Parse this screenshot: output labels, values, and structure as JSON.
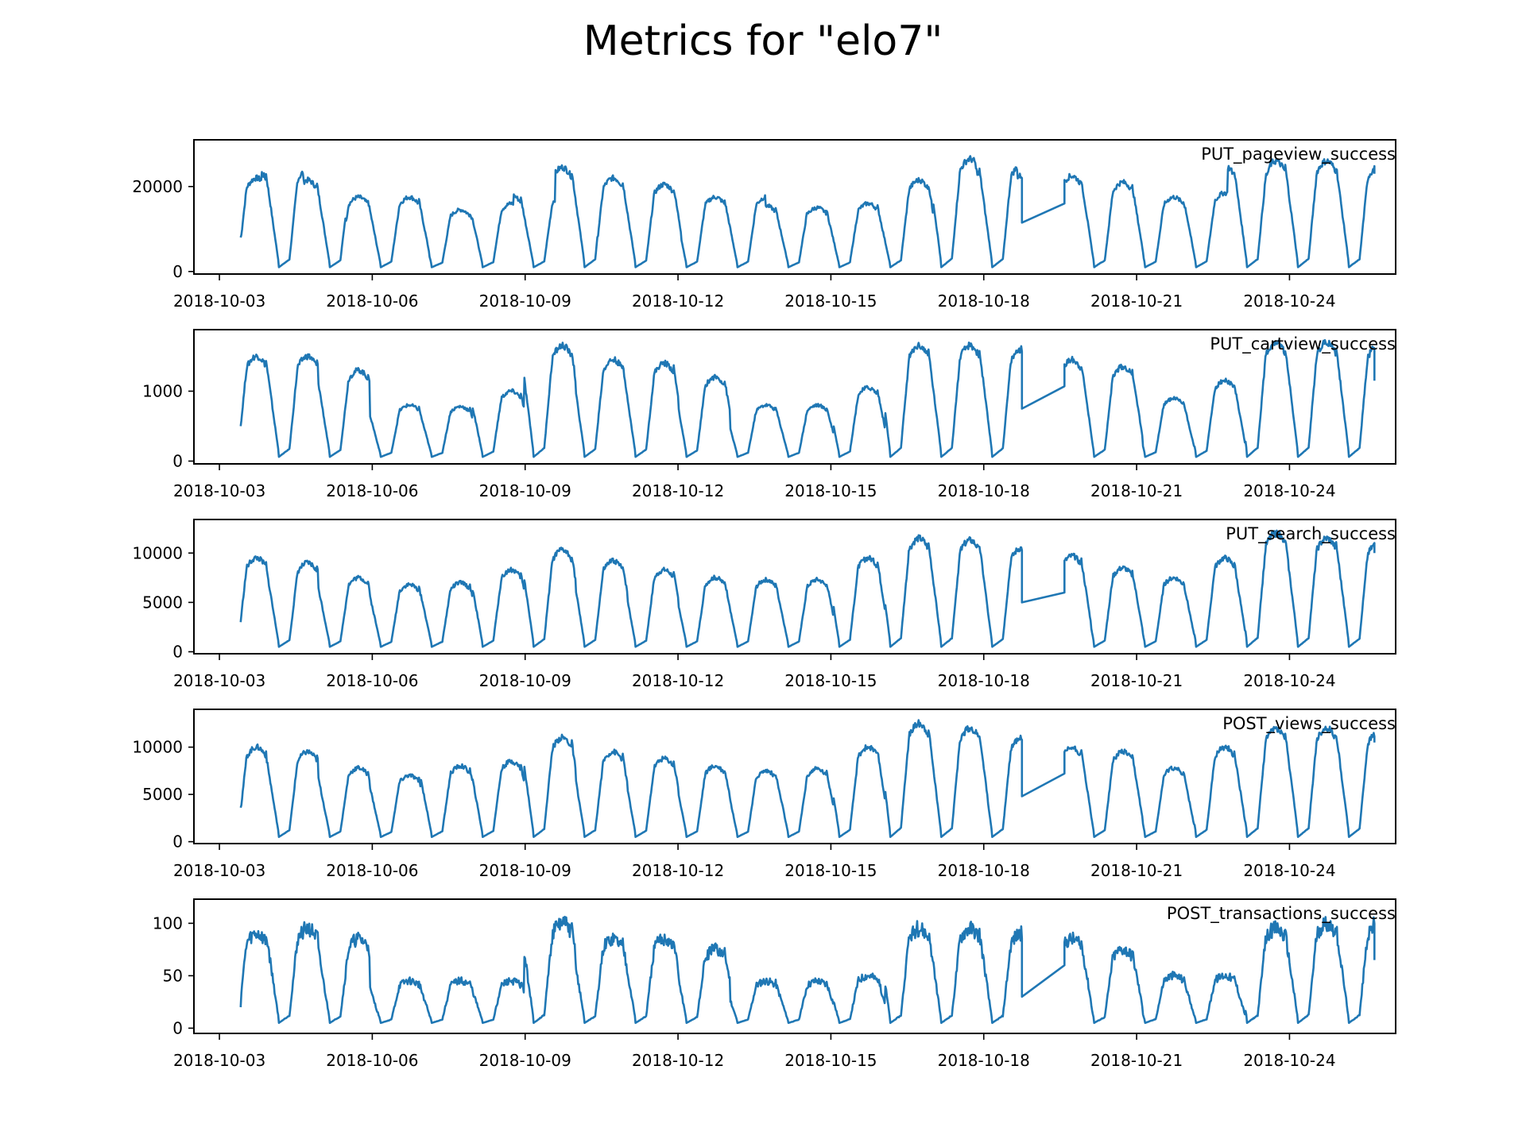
{
  "figure": {
    "title": "Metrics for \"elo7\""
  },
  "chart_data": {
    "type": "line",
    "x_unit": "date",
    "x_ticks": [
      "2018-10-03",
      "2018-10-06",
      "2018-10-09",
      "2018-10-12",
      "2018-10-15",
      "2018-10-18",
      "2018-10-21",
      "2018-10-24"
    ],
    "xlim": [
      "2018-10-02T12:00",
      "2018-10-26T02:00"
    ],
    "grid": false,
    "line_color": "#1f77b4",
    "panels": [
      {
        "name": "PUT_pageview_success",
        "ylim": [
          -600,
          31000
        ],
        "yticks": [
          0,
          20000
        ],
        "daily_peaks": [
          22000,
          24000,
          21500,
          17500,
          17500,
          14500,
          16000,
          18000,
          24500,
          22000,
          20500,
          17500,
          17500,
          15500,
          15000,
          16000,
          21500,
          26500,
          25000,
          22500,
          22500,
          null,
          21000,
          17500,
          18500,
          25000,
          26000,
          26000,
          24500
        ],
        "night_low": 1000,
        "start_value": 8000,
        "end_value": 23000,
        "gap": {
          "from": "2018-10-18T18:00",
          "to": "2018-10-19T14:00",
          "start_value": 11500,
          "end_value": 16000
        }
      },
      {
        "name": "PUT_cartview_success",
        "ylim": [
          -40,
          1880
        ],
        "yticks": [
          0,
          1000
        ],
        "daily_peaks": [
          1500,
          1500,
          1300,
          800,
          780,
          1000,
          1650,
          1450,
          1400,
          1200,
          800,
          800,
          1050,
          1650,
          1650,
          1600,
          1450,
          null,
          1350,
          900,
          1150,
          1700,
          1700,
          1650
        ],
        "night_low": 60,
        "start_value": 500,
        "end_value": 1150,
        "gap": {
          "from": "2018-10-18T18:00",
          "to": "2018-10-19T14:00",
          "start_value": 750,
          "end_value": 1070
        }
      },
      {
        "name": "PUT_search_success",
        "ylim": [
          -200,
          13400
        ],
        "yticks": [
          0,
          5000,
          10000
        ],
        "daily_peaks": [
          9500,
          9000,
          7500,
          6800,
          7000,
          8300,
          10300,
          9200,
          8300,
          7500,
          7300,
          7300,
          9500,
          11500,
          11300,
          10500,
          9700,
          null,
          8500,
          7500,
          9500,
          12000,
          11500,
          11000
        ],
        "night_low": 500,
        "start_value": 3000,
        "end_value": 10000,
        "gap": {
          "from": "2018-10-18T18:00",
          "to": "2018-10-19T14:00",
          "start_value": 5000,
          "end_value": 6000
        }
      },
      {
        "name": "POST_views_success",
        "ylim": [
          -200,
          14000
        ],
        "yticks": [
          0,
          5000,
          10000
        ],
        "daily_peaks": [
          10000,
          9500,
          7800,
          7000,
          8000,
          8500,
          11000,
          9500,
          8800,
          8000,
          7500,
          7700,
          10000,
          12500,
          12000,
          11000,
          10000,
          null,
          9500,
          7800,
          10000,
          12000,
          12000,
          11500
        ],
        "night_low": 500,
        "start_value": 3600,
        "end_value": 10500,
        "gap": {
          "from": "2018-10-18T18:00",
          "to": "2018-10-19T14:00",
          "start_value": 4800,
          "end_value": 7200
        }
      },
      {
        "name": "POST_transactions_success",
        "ylim": [
          -5,
          123
        ],
        "yticks": [
          0,
          50,
          100
        ],
        "daily_peaks": [
          90,
          95,
          85,
          45,
          45,
          45,
          100,
          85,
          85,
          75,
          45,
          45,
          50,
          95,
          95,
          90,
          85,
          null,
          75,
          50,
          50,
          95,
          100,
          100
        ],
        "night_low": 5,
        "start_value": 20,
        "end_value": 65,
        "gap": {
          "from": "2018-10-18T18:00",
          "to": "2018-10-19T14:00",
          "start_value": 30,
          "end_value": 60
        }
      }
    ]
  }
}
